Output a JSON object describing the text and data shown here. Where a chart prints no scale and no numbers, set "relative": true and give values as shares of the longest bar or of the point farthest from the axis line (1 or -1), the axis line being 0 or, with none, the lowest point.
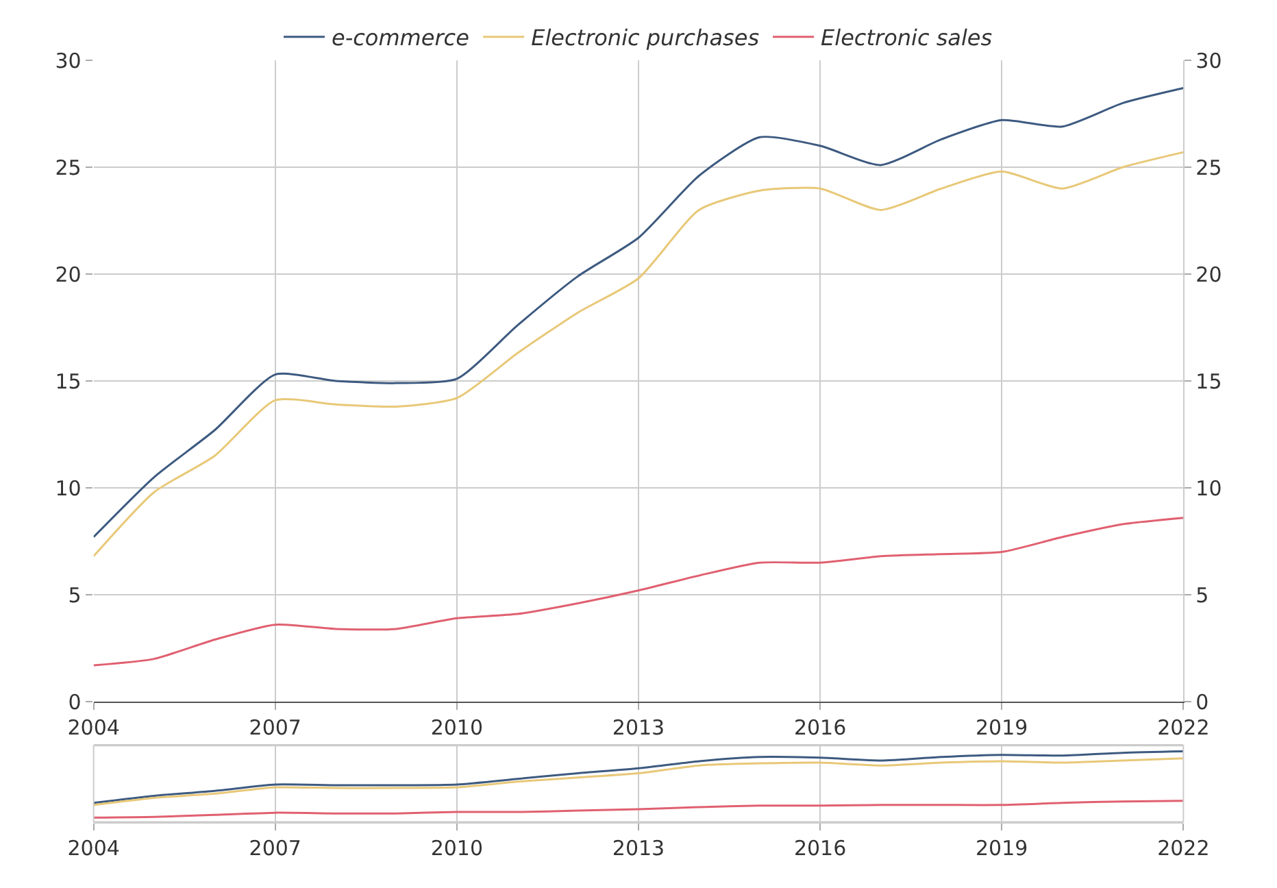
{
  "chart_data": [
    {
      "type": "line",
      "x": [
        2004,
        2005,
        2006,
        2007,
        2008,
        2009,
        2010,
        2011,
        2012,
        2013,
        2014,
        2015,
        2016,
        2017,
        2018,
        2019,
        2020,
        2021,
        2022
      ],
      "series": [
        {
          "name": "e-commerce",
          "color": "#3d5a80",
          "values": [
            7.7,
            10.5,
            12.7,
            15.3,
            15.0,
            14.9,
            15.1,
            17.6,
            19.9,
            21.7,
            24.6,
            26.4,
            26.0,
            25.1,
            26.3,
            27.2,
            26.9,
            28.0,
            28.7
          ]
        },
        {
          "name": "Electronic purchases",
          "color": "#e8c878",
          "values": [
            6.8,
            9.8,
            11.5,
            14.1,
            13.9,
            13.8,
            14.2,
            16.3,
            18.2,
            19.8,
            23.0,
            23.9,
            24.0,
            23.0,
            24.0,
            24.8,
            24.0,
            25.0,
            25.7
          ]
        },
        {
          "name": "Electronic sales",
          "color": "#e06070",
          "values": [
            1.7,
            2.0,
            2.9,
            3.6,
            3.4,
            3.4,
            3.9,
            4.1,
            4.6,
            5.2,
            5.9,
            6.5,
            6.5,
            6.8,
            6.9,
            7.0,
            7.7,
            8.3,
            8.6
          ]
        }
      ],
      "xlim": [
        2004,
        2022
      ],
      "xticks": [
        2004,
        2007,
        2010,
        2013,
        2016,
        2019,
        2022
      ],
      "ylim": [
        0,
        30
      ],
      "yticks": [
        0,
        5,
        10,
        15,
        20,
        25,
        30
      ],
      "y2lim": [
        0,
        30
      ],
      "y2ticks": [
        0,
        5,
        10,
        15,
        20,
        25,
        30
      ],
      "grid": true,
      "legend": "top",
      "marker": "none",
      "line_style": "solid"
    },
    {
      "type": "line",
      "relative": true,
      "x": [
        2004,
        2005,
        2006,
        2007,
        2008,
        2009,
        2010,
        2011,
        2012,
        2013,
        2014,
        2015,
        2016,
        2017,
        2018,
        2019,
        2020,
        2021,
        2022
      ],
      "series": [
        {
          "color": "#3d5a80",
          "values": [
            0.27,
            0.37,
            0.44,
            0.53,
            0.52,
            0.52,
            0.53,
            0.61,
            0.69,
            0.76,
            0.86,
            0.92,
            0.91,
            0.87,
            0.92,
            0.95,
            0.94,
            0.98,
            1.0
          ]
        },
        {
          "color": "#e8c878",
          "values": [
            0.24,
            0.34,
            0.4,
            0.49,
            0.48,
            0.48,
            0.49,
            0.57,
            0.63,
            0.69,
            0.8,
            0.83,
            0.84,
            0.8,
            0.84,
            0.86,
            0.84,
            0.87,
            0.9
          ]
        },
        {
          "color": "#e06070",
          "values": [
            0.06,
            0.07,
            0.1,
            0.13,
            0.12,
            0.12,
            0.14,
            0.14,
            0.16,
            0.18,
            0.21,
            0.23,
            0.23,
            0.24,
            0.24,
            0.24,
            0.27,
            0.29,
            0.3
          ]
        }
      ],
      "xlim": [
        2004,
        2022
      ],
      "xticks": [
        2004,
        2007,
        2010,
        2013,
        2016,
        2019,
        2022
      ],
      "grid": "x",
      "marker": "none",
      "line_style": "solid"
    }
  ]
}
